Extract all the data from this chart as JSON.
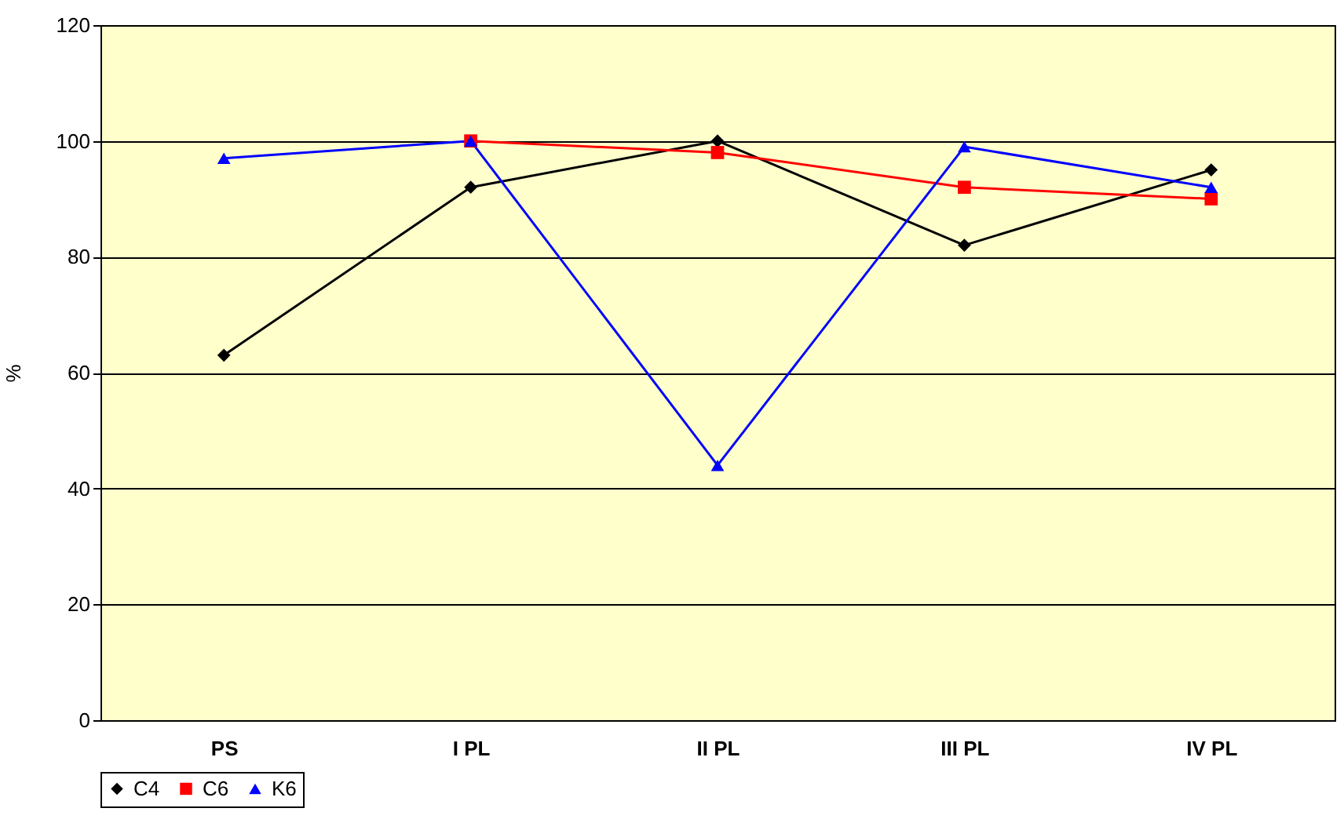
{
  "chart_data": {
    "type": "line",
    "ylabel": "%",
    "categories": [
      "PS",
      "I PL",
      "II PL",
      "III PL",
      "IV PL"
    ],
    "series": [
      {
        "name": "C4",
        "color": "#000000",
        "marker": "diamond",
        "values": [
          63,
          92,
          100,
          82,
          95
        ]
      },
      {
        "name": "C6",
        "color": "#ff0000",
        "marker": "square",
        "values": [
          null,
          100,
          98,
          92,
          90
        ]
      },
      {
        "name": "K6",
        "color": "#0000ff",
        "marker": "triangle",
        "values": [
          97,
          100,
          44,
          99,
          92
        ]
      }
    ],
    "ylim": [
      0,
      120
    ],
    "yticks": [
      0,
      20,
      40,
      60,
      80,
      100,
      120
    ],
    "grid": "y",
    "legend": "bottom",
    "line_style": "solid"
  }
}
